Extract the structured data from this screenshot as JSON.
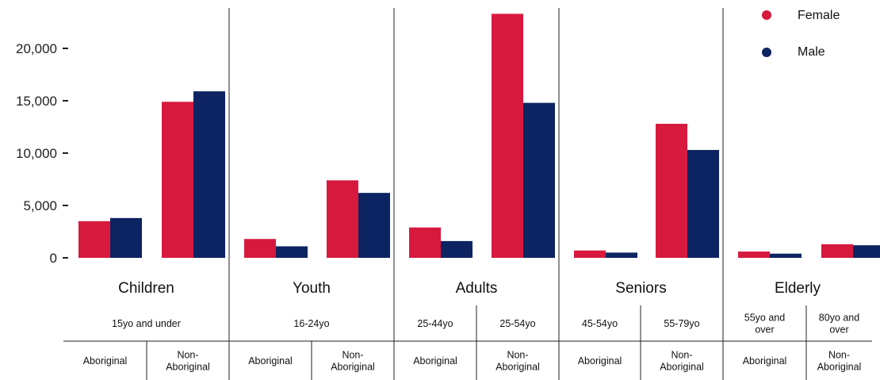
{
  "chart_data": {
    "type": "bar",
    "title": "",
    "xlabel": "",
    "ylabel": "",
    "ylim": [
      0,
      23500
    ],
    "yticks": [
      0,
      5000,
      10000,
      15000,
      20000
    ],
    "ytick_labels": [
      "0",
      "5,000",
      "10,000",
      "15,000",
      "20,000"
    ],
    "legend_position": "top-right",
    "series": [
      {
        "name": "Female",
        "color": "#d7193e",
        "values": [
          3500,
          14900,
          1800,
          7400,
          2900,
          23300,
          700,
          12800,
          600,
          1300
        ]
      },
      {
        "name": "Male",
        "color": "#0c2461",
        "values": [
          3800,
          15900,
          1100,
          6200,
          1600,
          14800,
          500,
          10300,
          400,
          1200
        ]
      }
    ],
    "categories": [
      "Aboriginal",
      "Non-\nAboriginal",
      "Aboriginal",
      "Non-\nAboriginal",
      "Aboriginal",
      "Non-\nAboriginal",
      "Aboriginal",
      "Non-\nAboriginal",
      "Aboriginal",
      "Non-\nAboriginal"
    ],
    "groups": [
      {
        "label": "Children",
        "ranges": [
          "15yo and under"
        ]
      },
      {
        "label": "Youth",
        "ranges": [
          "16-24yo"
        ]
      },
      {
        "label": "Adults",
        "ranges": [
          "25-44yo",
          "25-54yo"
        ]
      },
      {
        "label": "Seniors",
        "ranges": [
          "45-54yo",
          "55-79yo"
        ]
      },
      {
        "label": "Elderly",
        "ranges": [
          "55yo and\nover",
          "80yo and\nover"
        ]
      }
    ]
  }
}
